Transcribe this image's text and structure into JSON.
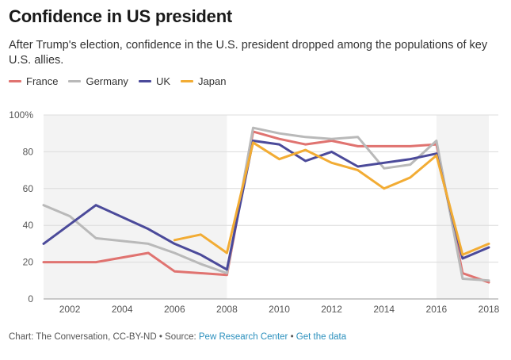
{
  "chart_data": {
    "type": "line",
    "title": "Confidence in US president",
    "subtitle": "After Trump's election, confidence in the U.S. president dropped among the populations of key U.S. allies.",
    "xlabel": "",
    "ylabel": "",
    "xlim": [
      2001,
      2018
    ],
    "ylim": [
      0,
      100
    ],
    "x_ticks": [
      2002,
      2004,
      2006,
      2008,
      2010,
      2012,
      2014,
      2016,
      2018
    ],
    "x_tick_labels": [
      "2002",
      "2004",
      "2006",
      "2008",
      "2010",
      "2012",
      "2014",
      "2016",
      "2018"
    ],
    "y_ticks": [
      0,
      20,
      40,
      60,
      80,
      100
    ],
    "y_tick_labels": [
      "0",
      "20",
      "40",
      "60",
      "80",
      "100%"
    ],
    "grid": true,
    "legend_position": "top-left",
    "shaded_periods": [
      [
        2001,
        2008
      ],
      [
        2016,
        2018
      ]
    ],
    "series": [
      {
        "name": "France",
        "color": "#e07370",
        "points": [
          [
            2001,
            20
          ],
          [
            2002,
            20
          ],
          [
            2003,
            20
          ],
          [
            2005,
            25
          ],
          [
            2006,
            15
          ],
          [
            2008,
            13
          ],
          [
            2009,
            91
          ],
          [
            2010,
            87
          ],
          [
            2011,
            84
          ],
          [
            2012,
            86
          ],
          [
            2013,
            83
          ],
          [
            2014,
            83
          ],
          [
            2015,
            83
          ],
          [
            2016,
            84
          ],
          [
            2017,
            14
          ],
          [
            2018,
            9
          ]
        ]
      },
      {
        "name": "Germany",
        "color": "#b9b9b9",
        "points": [
          [
            2001,
            51
          ],
          [
            2002,
            45
          ],
          [
            2003,
            33
          ],
          [
            2005,
            30
          ],
          [
            2006,
            25
          ],
          [
            2007,
            19
          ],
          [
            2008,
            14
          ],
          [
            2009,
            93
          ],
          [
            2010,
            90
          ],
          [
            2011,
            88
          ],
          [
            2012,
            87
          ],
          [
            2013,
            88
          ],
          [
            2014,
            71
          ],
          [
            2015,
            73
          ],
          [
            2016,
            86
          ],
          [
            2017,
            11
          ],
          [
            2018,
            10
          ]
        ]
      },
      {
        "name": "UK",
        "color": "#4b4a9a",
        "points": [
          [
            2001,
            30
          ],
          [
            2003,
            51
          ],
          [
            2005,
            38
          ],
          [
            2006,
            30
          ],
          [
            2007,
            24
          ],
          [
            2008,
            16
          ],
          [
            2009,
            86
          ],
          [
            2010,
            84
          ],
          [
            2011,
            75
          ],
          [
            2012,
            80
          ],
          [
            2013,
            72
          ],
          [
            2014,
            74
          ],
          [
            2015,
            76
          ],
          [
            2016,
            79
          ],
          [
            2017,
            22
          ],
          [
            2018,
            28
          ]
        ]
      },
      {
        "name": "Japan",
        "color": "#f2ac34",
        "points": [
          [
            2006,
            32
          ],
          [
            2007,
            35
          ],
          [
            2008,
            25
          ],
          [
            2009,
            85
          ],
          [
            2010,
            76
          ],
          [
            2011,
            81
          ],
          [
            2012,
            74
          ],
          [
            2013,
            70
          ],
          [
            2014,
            60
          ],
          [
            2015,
            66
          ],
          [
            2016,
            78
          ],
          [
            2017,
            24
          ],
          [
            2018,
            30
          ]
        ]
      }
    ]
  },
  "footer": {
    "credit": "Chart: The Conversation, CC-BY-ND • Source: ",
    "source_link": "Pew Research Center",
    "separator": " • ",
    "data_link": "Get the data"
  }
}
